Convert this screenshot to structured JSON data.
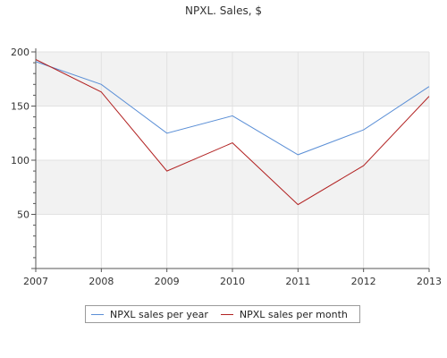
{
  "chart_data": {
    "type": "line",
    "title": "NPXL. Sales, $",
    "xlabel": "",
    "ylabel": "",
    "x": [
      "2007",
      "2008",
      "2009",
      "2010",
      "2011",
      "2012",
      "2013"
    ],
    "ylim": [
      0,
      200
    ],
    "yticks": [
      "50",
      "100",
      "150",
      "200"
    ],
    "grid": true,
    "legend_position": "bottom",
    "series": [
      {
        "name": "NPXL sales per year",
        "color": "#5b8fd6",
        "values": [
          191,
          170,
          125,
          141,
          105,
          128,
          168
        ]
      },
      {
        "name": "NPXL sales per month",
        "color": "#b22222",
        "values": [
          193,
          163,
          90,
          116,
          59,
          95,
          159
        ]
      }
    ]
  }
}
